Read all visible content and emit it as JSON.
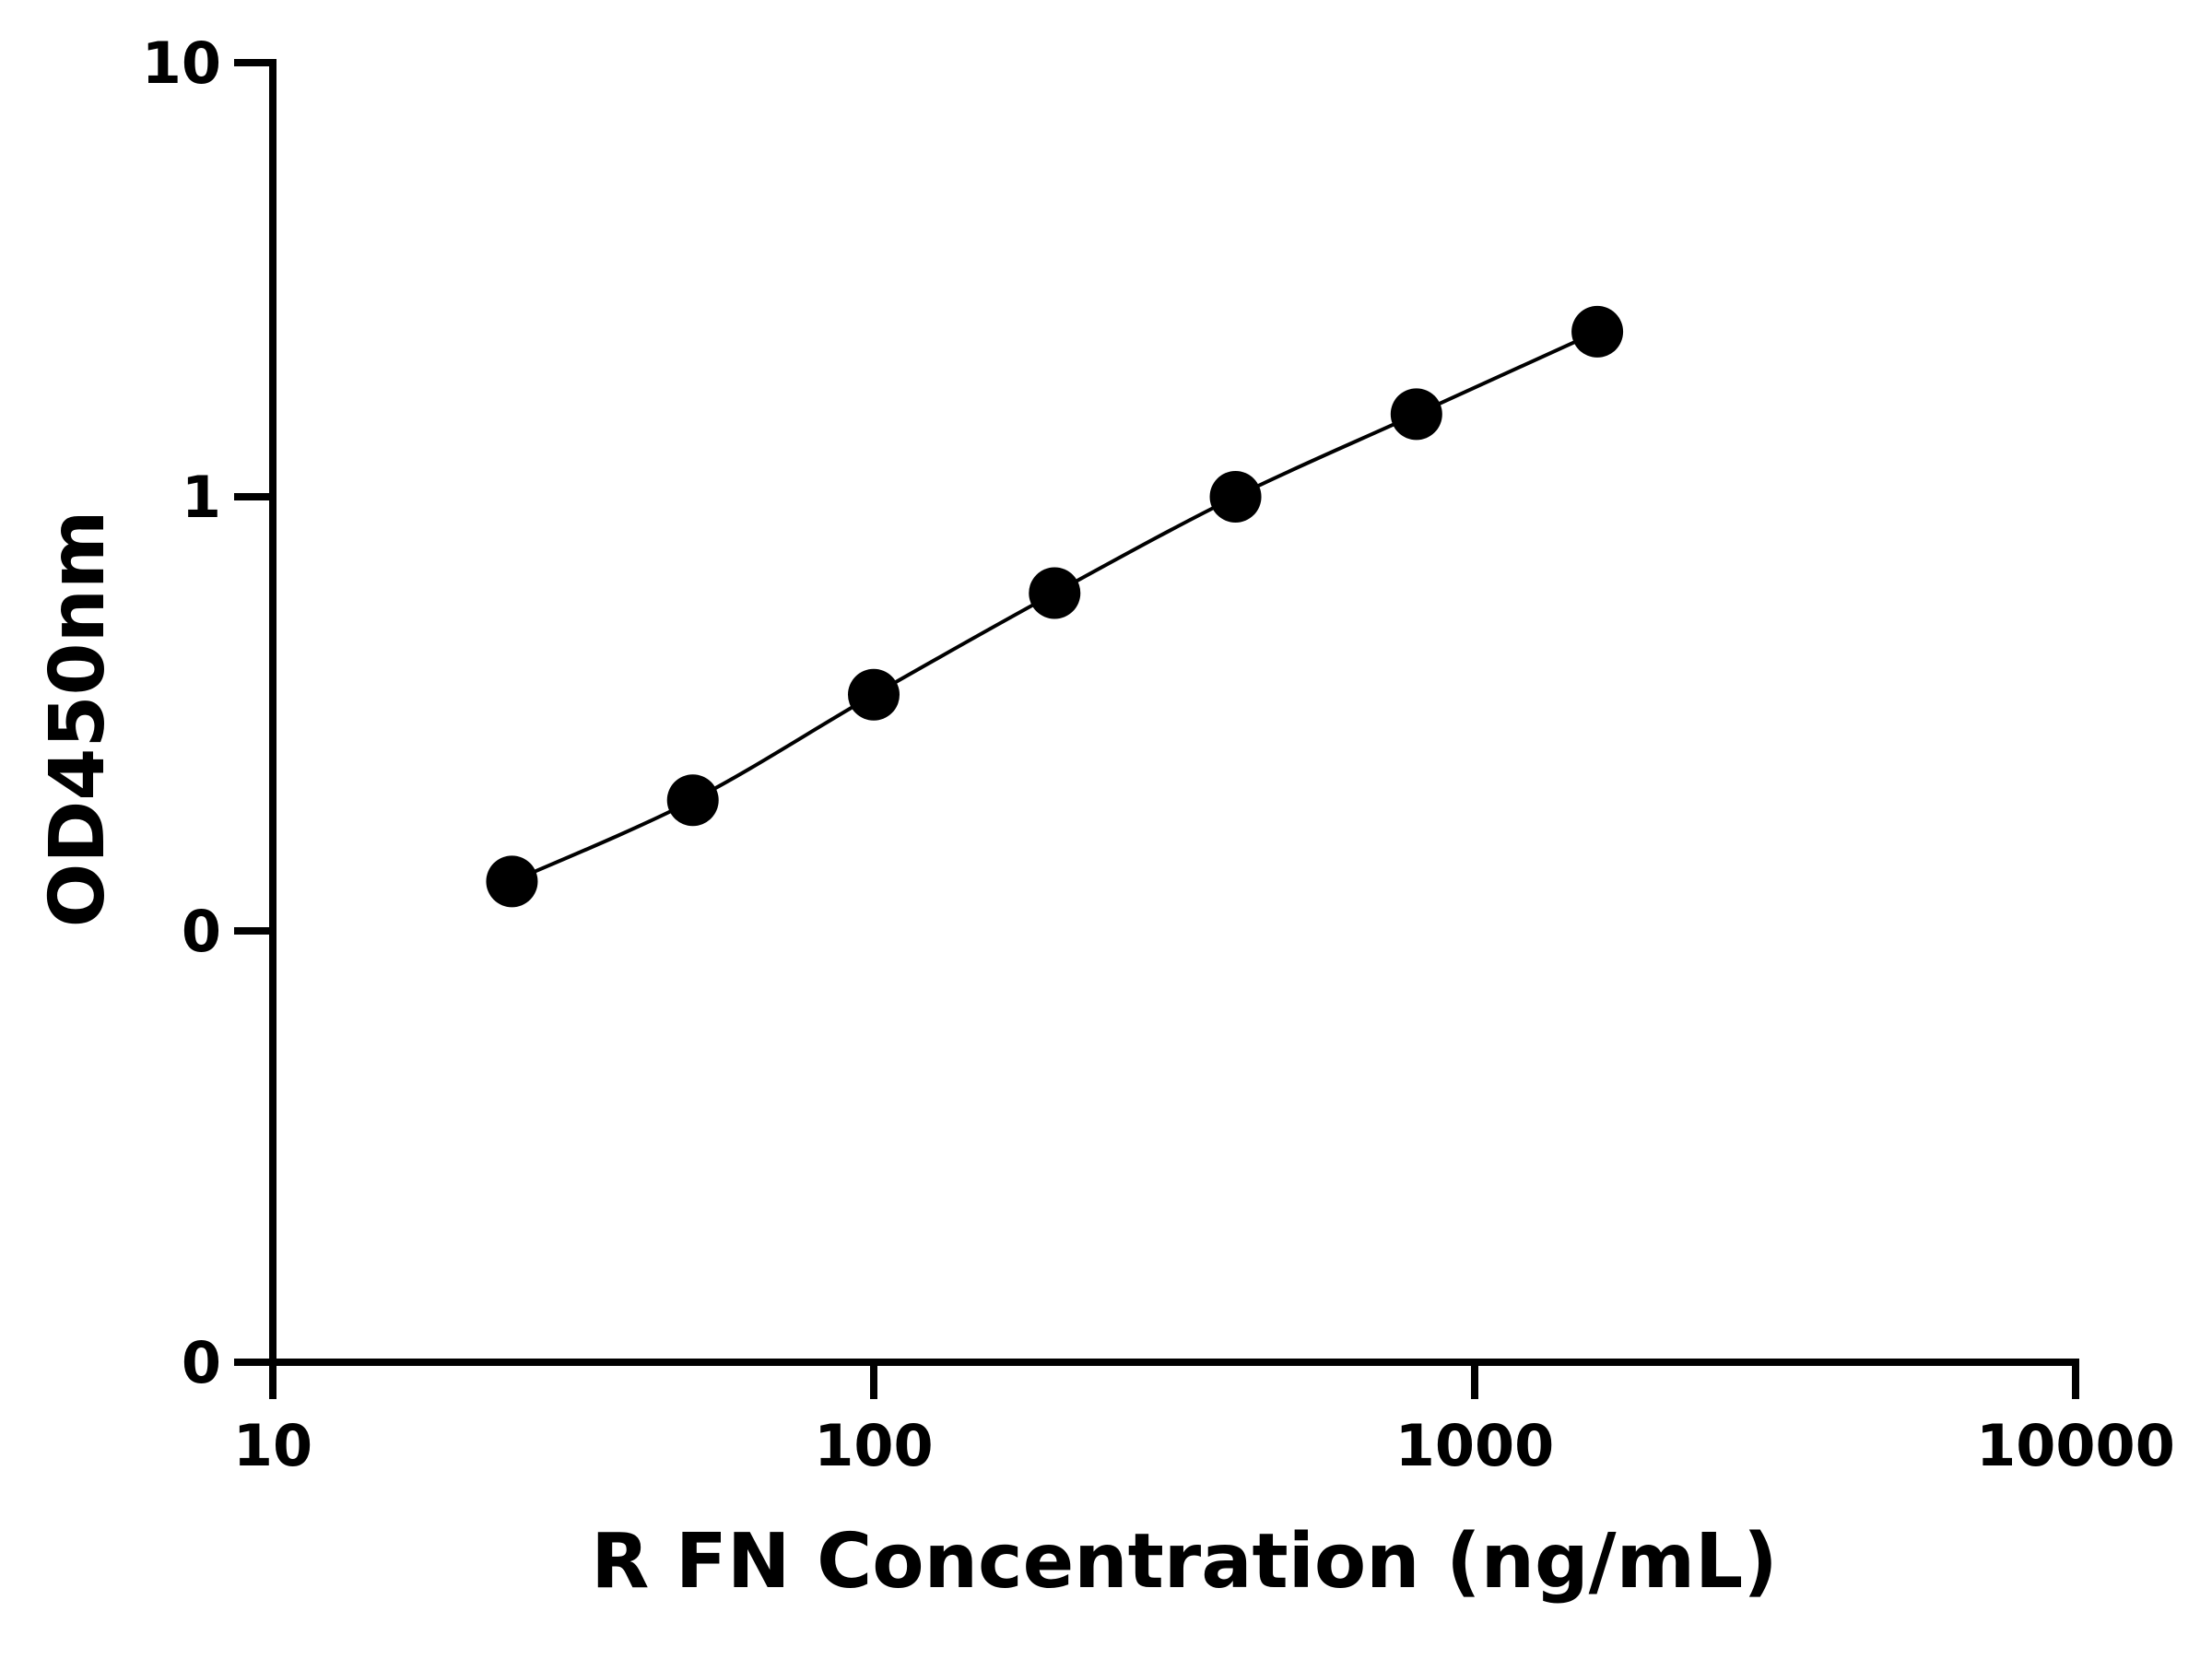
{
  "chart_data": {
    "type": "line",
    "title": "",
    "xlabel": "R FN Concentration (ng/mL)",
    "ylabel": "OD450nm",
    "x_scale": "log",
    "x_ticks": [
      10,
      100,
      1000,
      10000
    ],
    "x_tick_labels": [
      "10",
      "100",
      "1000",
      "10000"
    ],
    "y_ticks": [
      0,
      0.1,
      1,
      10
    ],
    "y_tick_labels": [
      "0",
      "0",
      "1",
      "10"
    ],
    "grid": false,
    "legend": "none",
    "colors": {
      "line": "#000000",
      "marker": "#000000",
      "axis": "#000000"
    },
    "series": [
      {
        "x": [
          25,
          50,
          100,
          200,
          400,
          800,
          1600
        ],
        "y": [
          0.13,
          0.2,
          0.35,
          0.6,
          1.0,
          1.55,
          2.4
        ]
      }
    ]
  }
}
